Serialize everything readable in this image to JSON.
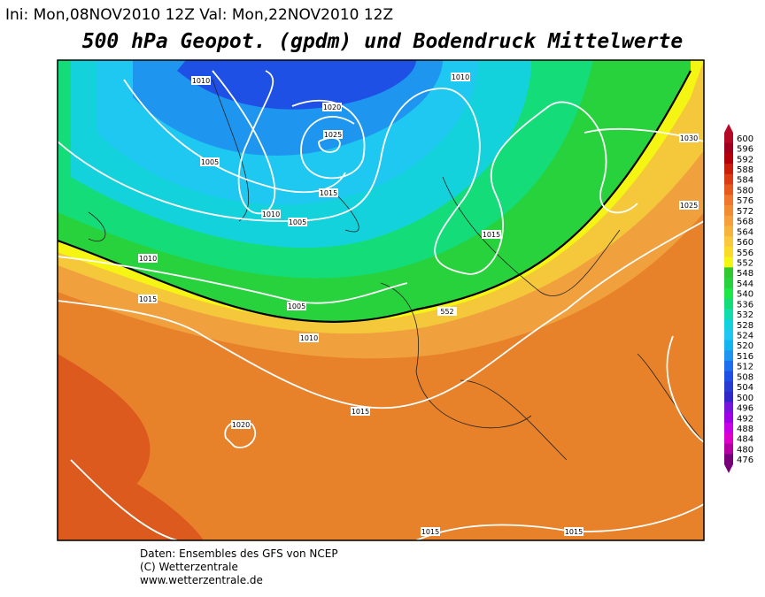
{
  "header": {
    "run": "Ini: Mon,08NOV2010 12Z Val: Mon,22NOV2010 12Z",
    "title": "500 hPa Geopot. (gpdm) und Bodendruck Mittelwerte"
  },
  "map": {
    "isobar_labels": [
      "1010",
      "1010",
      "1020",
      "1025",
      "1030",
      "1005",
      "1015",
      "1025",
      "1010",
      "1005",
      "1015",
      "1010",
      "1015",
      "1005",
      "552",
      "1010",
      "1015",
      "1020",
      "1015",
      "1015"
    ]
  },
  "colorbar": {
    "values": [
      600,
      596,
      592,
      588,
      584,
      580,
      576,
      572,
      568,
      564,
      560,
      556,
      552,
      548,
      544,
      540,
      536,
      532,
      528,
      524,
      520,
      516,
      512,
      508,
      504,
      500,
      496,
      492,
      488,
      484,
      480,
      476
    ],
    "colors": [
      "#b40a28",
      "#a0001e",
      "#b4000a",
      "#c81e0a",
      "#dc3c14",
      "#e65a1e",
      "#f0782d",
      "#f08c32",
      "#f5a03c",
      "#f5b43c",
      "#fac83c",
      "#fadc28",
      "#f5f514",
      "#32c832",
      "#28d23c",
      "#1ee646",
      "#14dc78",
      "#14dcaa",
      "#14d2dc",
      "#1ec8f0",
      "#14b4f0",
      "#1e96f0",
      "#1e6ef0",
      "#1e50e6",
      "#283cd2",
      "#3228c8",
      "#7814dc",
      "#a000e6",
      "#c800e6",
      "#dc00c8",
      "#b400a0",
      "#780078"
    ]
  },
  "footer": [
    "Daten: Ensembles des GFS von NCEP",
    "(C) Wetterzentrale",
    "www.wetterzentrale.de"
  ]
}
